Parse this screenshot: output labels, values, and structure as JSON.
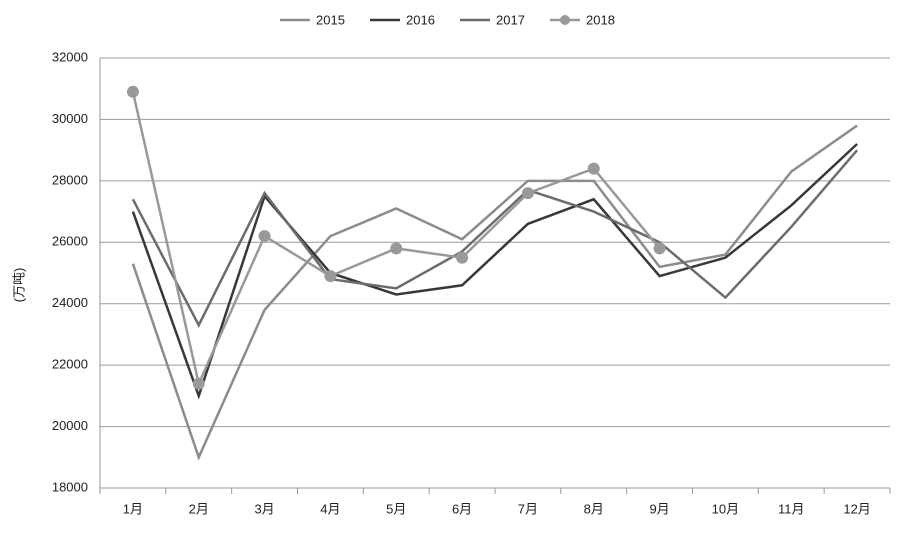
{
  "chart_data": {
    "type": "line",
    "y_label": "(万吨)",
    "categories": [
      "1月",
      "2月",
      "3月",
      "4月",
      "5月",
      "6月",
      "7月",
      "8月",
      "9月",
      "10月",
      "11月",
      "12月"
    ],
    "series": [
      {
        "name": "2015",
        "color": "#8c8c8c",
        "marker": false,
        "values": [
          25300,
          19000,
          23800,
          26200,
          27100,
          26100,
          28000,
          28000,
          25200,
          25600,
          28300,
          29800
        ]
      },
      {
        "name": "2016",
        "color": "#383838",
        "marker": false,
        "values": [
          27000,
          21000,
          27500,
          25000,
          24300,
          24600,
          26600,
          27400,
          24900,
          25500,
          27200,
          29200
        ]
      },
      {
        "name": "2017",
        "color": "#6c6c6c",
        "marker": false,
        "values": [
          27400,
          23300,
          27600,
          24800,
          24500,
          25700,
          27700,
          27000,
          26000,
          24200,
          26500,
          29000
        ]
      },
      {
        "name": "2018",
        "color": "#999999",
        "marker": true,
        "values": [
          30900,
          21400,
          26200,
          24900,
          25800,
          25500,
          27600,
          28400,
          25800,
          null,
          null,
          null
        ]
      }
    ],
    "ylim": [
      18000,
      32000
    ],
    "yticks": [
      18000,
      20000,
      22000,
      24000,
      26000,
      28000,
      30000,
      32000
    ],
    "grid": true
  }
}
